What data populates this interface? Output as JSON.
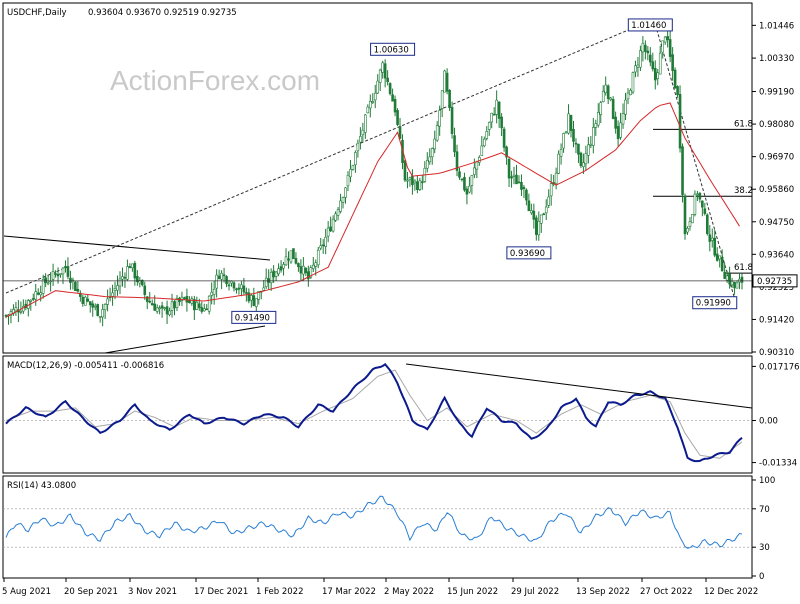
{
  "header": {
    "symbol": "USDCHF,Daily",
    "ohlc": "0.93604 0.93670 0.92519 0.92735"
  },
  "watermark": "ActionForex.com",
  "colors": {
    "candle": "#1f7a37",
    "ma": "#d62728",
    "macd": "#0b1a8c",
    "signal": "#a9a9a9",
    "rsi": "#2a7fd4",
    "dashed": "#909090"
  },
  "chart_data": [
    {
      "type": "candlestick",
      "title": "USDCHF,Daily",
      "ylim": [
        0.9031,
        1.0214
      ],
      "y_ticks": [
        "1.01446",
        "1.00330",
        "0.99190",
        "0.98080",
        "0.96970",
        "0.95860",
        "0.94750",
        "0.93640",
        "0.92525",
        "0.91420",
        "0.90310"
      ],
      "x_ticks": [
        "5 Aug 2021",
        "20 Sep 2021",
        "3 Nov 2021",
        "17 Dec 2021",
        "1 Feb 2022",
        "17 Mar 2022",
        "2 May 2022",
        "15 Jun 2022",
        "29 Jul 2022",
        "13 Sep 2022",
        "27 Oct 2022",
        "12 Dec 2022"
      ],
      "current_price": "0.92735",
      "close_path": [
        {
          "i": 0,
          "v": 0.9155
        },
        {
          "i": 8,
          "v": 0.9195
        },
        {
          "i": 16,
          "v": 0.927
        },
        {
          "i": 24,
          "v": 0.932
        },
        {
          "i": 30,
          "v": 0.922
        },
        {
          "i": 38,
          "v": 0.9165
        },
        {
          "i": 45,
          "v": 0.926
        },
        {
          "i": 50,
          "v": 0.933
        },
        {
          "i": 57,
          "v": 0.921
        },
        {
          "i": 63,
          "v": 0.9165
        },
        {
          "i": 72,
          "v": 0.921
        },
        {
          "i": 80,
          "v": 0.9175
        },
        {
          "i": 86,
          "v": 0.93
        },
        {
          "i": 93,
          "v": 0.926
        },
        {
          "i": 100,
          "v": 0.9205
        },
        {
          "i": 108,
          "v": 0.93
        },
        {
          "i": 115,
          "v": 0.937
        },
        {
          "i": 122,
          "v": 0.928
        },
        {
          "i": 130,
          "v": 0.944
        },
        {
          "i": 138,
          "v": 0.962
        },
        {
          "i": 145,
          "v": 0.982
        },
        {
          "i": 152,
          "v": 1.001
        },
        {
          "i": 157,
          "v": 0.986
        },
        {
          "i": 161,
          "v": 0.962
        },
        {
          "i": 167,
          "v": 0.96
        },
        {
          "i": 173,
          "v": 0.974
        },
        {
          "i": 177,
          "v": 0.997
        },
        {
          "i": 182,
          "v": 0.966
        },
        {
          "i": 186,
          "v": 0.957
        },
        {
          "i": 193,
          "v": 0.976
        },
        {
          "i": 198,
          "v": 0.988
        },
        {
          "i": 203,
          "v": 0.963
        },
        {
          "i": 209,
          "v": 0.96
        },
        {
          "i": 214,
          "v": 0.943
        },
        {
          "i": 221,
          "v": 0.962
        },
        {
          "i": 227,
          "v": 0.983
        },
        {
          "i": 232,
          "v": 0.965
        },
        {
          "i": 237,
          "v": 0.978
        },
        {
          "i": 242,
          "v": 0.995
        },
        {
          "i": 247,
          "v": 0.977
        },
        {
          "i": 252,
          "v": 0.994
        },
        {
          "i": 257,
          "v": 1.008
        },
        {
          "i": 262,
          "v": 0.996
        },
        {
          "i": 266,
          "v": 1.012
        },
        {
          "i": 271,
          "v": 0.99
        },
        {
          "i": 274,
          "v": 0.943
        },
        {
          "i": 279,
          "v": 0.958
        },
        {
          "i": 284,
          "v": 0.942
        },
        {
          "i": 290,
          "v": 0.93
        },
        {
          "i": 294,
          "v": 0.925
        },
        {
          "i": 297,
          "v": 0.9274
        }
      ],
      "ma_path": [
        {
          "i": 0,
          "v": 0.915
        },
        {
          "i": 20,
          "v": 0.924
        },
        {
          "i": 40,
          "v": 0.922
        },
        {
          "i": 60,
          "v": 0.9215
        },
        {
          "i": 80,
          "v": 0.9205
        },
        {
          "i": 100,
          "v": 0.923
        },
        {
          "i": 118,
          "v": 0.927
        },
        {
          "i": 130,
          "v": 0.932
        },
        {
          "i": 140,
          "v": 0.95
        },
        {
          "i": 150,
          "v": 0.968
        },
        {
          "i": 158,
          "v": 0.978
        },
        {
          "i": 163,
          "v": 0.963
        },
        {
          "i": 175,
          "v": 0.964
        },
        {
          "i": 190,
          "v": 0.968
        },
        {
          "i": 200,
          "v": 0.971
        },
        {
          "i": 212,
          "v": 0.965
        },
        {
          "i": 222,
          "v": 0.96
        },
        {
          "i": 234,
          "v": 0.965
        },
        {
          "i": 246,
          "v": 0.972
        },
        {
          "i": 256,
          "v": 0.982
        },
        {
          "i": 263,
          "v": 0.987
        },
        {
          "i": 268,
          "v": 0.988
        },
        {
          "i": 274,
          "v": 0.976
        },
        {
          "i": 284,
          "v": 0.962
        },
        {
          "i": 296,
          "v": 0.946
        }
      ],
      "price_labels": [
        {
          "text": "1.00630",
          "i": 156,
          "v": 1.0063
        },
        {
          "text": "1.01460",
          "i": 260,
          "v": 1.0146
        },
        {
          "text": "0.93690",
          "i": 211,
          "v": 0.9369
        },
        {
          "text": "0.91490",
          "i": 100,
          "v": 0.9149
        },
        {
          "text": "0.91990",
          "i": 286,
          "v": 0.9199
        }
      ],
      "fib_levels": [
        {
          "label": "61.8",
          "v": 0.979
        },
        {
          "label": "38.2",
          "v": 0.9562
        },
        {
          "label": "61.8",
          "v": 0.93
        }
      ]
    },
    {
      "type": "line",
      "title": "MACD(12,26,9) -0.005411 -0.006816",
      "ylim": [
        -0.0157,
        0.0192
      ],
      "y_ticks": [
        "0.017176",
        "0.00",
        "-0.01334"
      ],
      "macd_path": [
        {
          "i": 0,
          "v": -0.001
        },
        {
          "i": 8,
          "v": 0.004
        },
        {
          "i": 16,
          "v": 0.001
        },
        {
          "i": 24,
          "v": 0.006
        },
        {
          "i": 32,
          "v": 0.0
        },
        {
          "i": 38,
          "v": -0.004
        },
        {
          "i": 46,
          "v": 0.0
        },
        {
          "i": 52,
          "v": 0.005
        },
        {
          "i": 58,
          "v": 0.0
        },
        {
          "i": 66,
          "v": -0.003
        },
        {
          "i": 74,
          "v": 0.002
        },
        {
          "i": 80,
          "v": -0.001
        },
        {
          "i": 88,
          "v": 0.001
        },
        {
          "i": 96,
          "v": -0.001
        },
        {
          "i": 104,
          "v": 0.002
        },
        {
          "i": 112,
          "v": 0.001
        },
        {
          "i": 118,
          "v": -0.002
        },
        {
          "i": 126,
          "v": 0.005
        },
        {
          "i": 132,
          "v": 0.003
        },
        {
          "i": 140,
          "v": 0.01
        },
        {
          "i": 148,
          "v": 0.016
        },
        {
          "i": 153,
          "v": 0.018
        },
        {
          "i": 158,
          "v": 0.012
        },
        {
          "i": 164,
          "v": 0.0
        },
        {
          "i": 170,
          "v": -0.003
        },
        {
          "i": 177,
          "v": 0.007
        },
        {
          "i": 183,
          "v": -0.001
        },
        {
          "i": 188,
          "v": -0.005
        },
        {
          "i": 194,
          "v": 0.004
        },
        {
          "i": 200,
          "v": 0.0
        },
        {
          "i": 206,
          "v": -0.001
        },
        {
          "i": 212,
          "v": -0.006
        },
        {
          "i": 218,
          "v": -0.003
        },
        {
          "i": 224,
          "v": 0.004
        },
        {
          "i": 230,
          "v": 0.007
        },
        {
          "i": 234,
          "v": 0.001
        },
        {
          "i": 238,
          "v": -0.002
        },
        {
          "i": 243,
          "v": 0.006
        },
        {
          "i": 248,
          "v": 0.005
        },
        {
          "i": 254,
          "v": 0.008
        },
        {
          "i": 260,
          "v": 0.009
        },
        {
          "i": 266,
          "v": 0.007
        },
        {
          "i": 271,
          "v": -0.002
        },
        {
          "i": 275,
          "v": -0.012
        },
        {
          "i": 280,
          "v": -0.013
        },
        {
          "i": 286,
          "v": -0.011
        },
        {
          "i": 292,
          "v": -0.01
        },
        {
          "i": 297,
          "v": -0.0054
        }
      ],
      "signal_path": [
        {
          "i": 0,
          "v": 0.0
        },
        {
          "i": 10,
          "v": 0.003
        },
        {
          "i": 20,
          "v": 0.003
        },
        {
          "i": 28,
          "v": 0.004
        },
        {
          "i": 36,
          "v": -0.002
        },
        {
          "i": 44,
          "v": -0.001
        },
        {
          "i": 52,
          "v": 0.003
        },
        {
          "i": 60,
          "v": 0.001
        },
        {
          "i": 68,
          "v": -0.002
        },
        {
          "i": 76,
          "v": 0.001
        },
        {
          "i": 86,
          "v": 0.0
        },
        {
          "i": 96,
          "v": 0.0
        },
        {
          "i": 108,
          "v": 0.001
        },
        {
          "i": 118,
          "v": -0.001
        },
        {
          "i": 128,
          "v": 0.003
        },
        {
          "i": 140,
          "v": 0.007
        },
        {
          "i": 150,
          "v": 0.014
        },
        {
          "i": 157,
          "v": 0.016
        },
        {
          "i": 163,
          "v": 0.008
        },
        {
          "i": 170,
          "v": 0.0
        },
        {
          "i": 178,
          "v": 0.004
        },
        {
          "i": 186,
          "v": -0.002
        },
        {
          "i": 196,
          "v": 0.002
        },
        {
          "i": 206,
          "v": 0.0
        },
        {
          "i": 214,
          "v": -0.004
        },
        {
          "i": 224,
          "v": 0.002
        },
        {
          "i": 232,
          "v": 0.005
        },
        {
          "i": 240,
          "v": 0.002
        },
        {
          "i": 250,
          "v": 0.006
        },
        {
          "i": 260,
          "v": 0.008
        },
        {
          "i": 268,
          "v": 0.006
        },
        {
          "i": 274,
          "v": -0.004
        },
        {
          "i": 280,
          "v": -0.011
        },
        {
          "i": 288,
          "v": -0.012
        },
        {
          "i": 297,
          "v": -0.0068
        }
      ]
    },
    {
      "type": "line",
      "title": "RSI(14) 43.0800",
      "ylim": [
        0,
        100
      ],
      "y_ticks": [
        "100",
        "70",
        "30",
        "0"
      ],
      "rsi_path": [
        {
          "i": 0,
          "v": 40
        },
        {
          "i": 4,
          "v": 55
        },
        {
          "i": 9,
          "v": 48
        },
        {
          "i": 14,
          "v": 60
        },
        {
          "i": 20,
          "v": 52
        },
        {
          "i": 26,
          "v": 63
        },
        {
          "i": 32,
          "v": 45
        },
        {
          "i": 38,
          "v": 38
        },
        {
          "i": 44,
          "v": 56
        },
        {
          "i": 50,
          "v": 63
        },
        {
          "i": 56,
          "v": 47
        },
        {
          "i": 62,
          "v": 42
        },
        {
          "i": 68,
          "v": 55
        },
        {
          "i": 74,
          "v": 46
        },
        {
          "i": 80,
          "v": 50
        },
        {
          "i": 86,
          "v": 58
        },
        {
          "i": 92,
          "v": 44
        },
        {
          "i": 98,
          "v": 50
        },
        {
          "i": 104,
          "v": 55
        },
        {
          "i": 110,
          "v": 48
        },
        {
          "i": 116,
          "v": 42
        },
        {
          "i": 122,
          "v": 60
        },
        {
          "i": 128,
          "v": 55
        },
        {
          "i": 134,
          "v": 66
        },
        {
          "i": 140,
          "v": 62
        },
        {
          "i": 146,
          "v": 74
        },
        {
          "i": 152,
          "v": 82
        },
        {
          "i": 158,
          "v": 65
        },
        {
          "i": 163,
          "v": 40
        },
        {
          "i": 168,
          "v": 55
        },
        {
          "i": 174,
          "v": 48
        },
        {
          "i": 178,
          "v": 68
        },
        {
          "i": 184,
          "v": 42
        },
        {
          "i": 190,
          "v": 38
        },
        {
          "i": 196,
          "v": 62
        },
        {
          "i": 202,
          "v": 50
        },
        {
          "i": 208,
          "v": 42
        },
        {
          "i": 214,
          "v": 36
        },
        {
          "i": 220,
          "v": 58
        },
        {
          "i": 226,
          "v": 66
        },
        {
          "i": 232,
          "v": 45
        },
        {
          "i": 238,
          "v": 62
        },
        {
          "i": 244,
          "v": 70
        },
        {
          "i": 250,
          "v": 55
        },
        {
          "i": 256,
          "v": 68
        },
        {
          "i": 262,
          "v": 60
        },
        {
          "i": 268,
          "v": 66
        },
        {
          "i": 272,
          "v": 38
        },
        {
          "i": 276,
          "v": 28
        },
        {
          "i": 282,
          "v": 36
        },
        {
          "i": 288,
          "v": 32
        },
        {
          "i": 293,
          "v": 38
        },
        {
          "i": 297,
          "v": 43
        }
      ]
    }
  ]
}
